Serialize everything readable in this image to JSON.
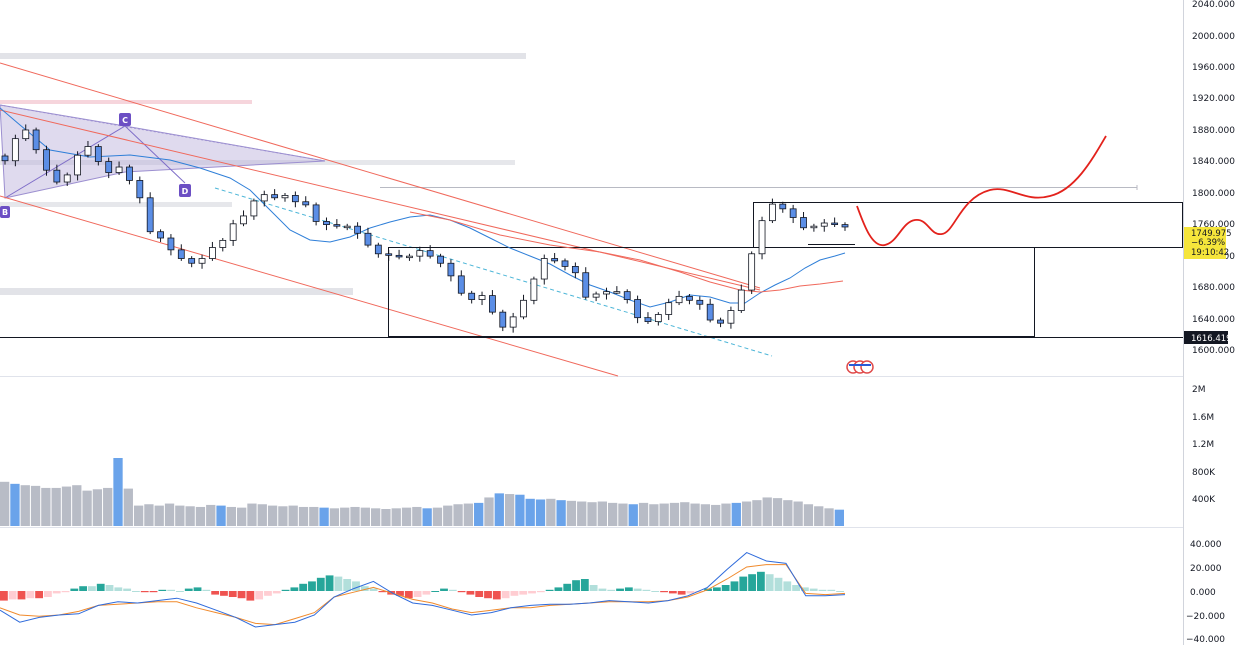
{
  "chart_data": [
    {
      "type": "candlestick",
      "panel": "price",
      "y_ticks": [
        "2040.000",
        "2000.000",
        "1960.000",
        "1920.000",
        "1880.000",
        "1840.000",
        "1800.000",
        "1760.000",
        "1720.000",
        "1680.000",
        "1640.000",
        "1600.000"
      ],
      "y_tick_values": [
        2040,
        2000,
        1960,
        1920,
        1880,
        1840,
        1800,
        1760,
        1720,
        1680,
        1640,
        1600
      ],
      "ylim": [
        1581,
        2044
      ],
      "last_price": {
        "price": "1749.975",
        "change": "−6.39%",
        "countdown": "19:10:42",
        "value": 1749.975
      },
      "level_label": {
        "text": "1616.419",
        "value": 1616.419
      },
      "point_labels": [
        "B",
        "C",
        "D"
      ],
      "close_sketch": [
        1840,
        1868,
        1879,
        1854,
        1828,
        1813,
        1822,
        1847,
        1858,
        1839,
        1825,
        1832,
        1815,
        1793,
        1750,
        1742,
        1727,
        1716,
        1710,
        1716,
        1730,
        1739,
        1760,
        1770,
        1789,
        1797,
        1793,
        1796,
        1788,
        1784,
        1763,
        1759,
        1757,
        1757,
        1748,
        1733,
        1722,
        1720,
        1718,
        1719,
        1726,
        1719,
        1710,
        1694,
        1672,
        1664,
        1669,
        1648,
        1629,
        1642,
        1663,
        1690,
        1716,
        1713,
        1706,
        1698,
        1667,
        1671,
        1674,
        1674,
        1664,
        1641,
        1636,
        1645,
        1660,
        1668,
        1663,
        1658,
        1638,
        1634,
        1650,
        1676,
        1722,
        1764,
        1785,
        1779,
        1768,
        1755,
        1757,
        1761,
        1759,
        1756
      ],
      "volume_sketch": [
        650,
        620,
        600,
        590,
        560,
        560,
        580,
        600,
        520,
        540,
        560,
        1000,
        550,
        300,
        320,
        300,
        330,
        300,
        290,
        280,
        310,
        300,
        280,
        270,
        330,
        320,
        300,
        290,
        300,
        280,
        280,
        270,
        260,
        270,
        280,
        270,
        260,
        250,
        260,
        270,
        280,
        260,
        270,
        300,
        320,
        330,
        340,
        420,
        480,
        470,
        460,
        400,
        390,
        400,
        380,
        370,
        360,
        350,
        360,
        340,
        330,
        320,
        340,
        320,
        330,
        340,
        350,
        330,
        320,
        310,
        330,
        340,
        360,
        380,
        420,
        410,
        380,
        360,
        320,
        290,
        260,
        240
      ],
      "macd": {
        "y_ticks": [
          "40.000",
          "20.000",
          "0.000",
          "−20.000",
          "−40.000"
        ],
        "y_tick_values": [
          40,
          20,
          0,
          -20,
          -40
        ],
        "ylim": [
          -42,
          42
        ],
        "macd_line": [
          -16,
          -26,
          -22,
          -20,
          -19,
          -12,
          -9,
          -10,
          -8,
          -6,
          -10,
          -16,
          -22,
          -30,
          -28,
          -26,
          -20,
          -5,
          2,
          8,
          -2,
          -10,
          -12,
          -16,
          -20,
          -18,
          -14,
          -12,
          -11,
          -11,
          -10,
          -8,
          -9,
          -10,
          -8,
          -4,
          3,
          18,
          32,
          25,
          23,
          -4,
          -4,
          -3
        ],
        "signal_line": [
          -14,
          -20,
          -21,
          -20,
          -17,
          -12,
          -11,
          -10,
          -9,
          -9,
          -14,
          -18,
          -22,
          -27,
          -28,
          -23,
          -18,
          -5,
          -1,
          3,
          -2,
          -7,
          -10,
          -15,
          -18,
          -16,
          -14,
          -14,
          -12,
          -11,
          -10,
          -9,
          -9,
          -9,
          -8,
          -5,
          1,
          10,
          20,
          22,
          22,
          -2,
          -3,
          -2
        ],
        "histogram": [
          -8,
          -7,
          -7,
          -6,
          -6,
          -5,
          -2,
          -1,
          2,
          4,
          4,
          6,
          5,
          3,
          2,
          0,
          -1,
          -1,
          1,
          1,
          0,
          2,
          3,
          1,
          -3,
          -4,
          -5,
          -6,
          -8,
          -7,
          -4,
          -2,
          1,
          3,
          6,
          8,
          11,
          13,
          12,
          10,
          8,
          4,
          2,
          -1,
          -3,
          -4,
          -6,
          -5,
          -3,
          0,
          2,
          1,
          -1,
          -3,
          -5,
          -6,
          -7,
          -6,
          -4,
          -3,
          -2,
          -1,
          1,
          3,
          6,
          9,
          10,
          5,
          2,
          1,
          2,
          3,
          2,
          1,
          0,
          -1,
          -2,
          -3,
          -2,
          -1,
          2,
          3,
          5,
          8,
          12,
          14,
          16,
          14,
          11,
          8,
          5,
          3,
          2,
          1,
          1,
          0
        ]
      },
      "volume": {
        "y_ticks": [
          "2M",
          "1.6M",
          "1.2M",
          "800K",
          "400K"
        ],
        "y_tick_values": [
          2000000,
          1600000,
          1200000,
          800000,
          400000
        ],
        "ylim": [
          0,
          2200000
        ]
      }
    }
  ]
}
